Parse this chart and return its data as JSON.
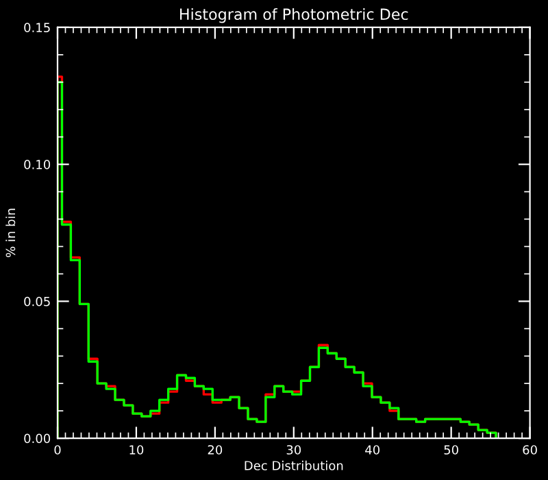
{
  "chart_data": {
    "type": "histogram",
    "title": "Histogram of Photometric Dec",
    "xlabel": "Dec Distribution",
    "ylabel": "% in bin",
    "bins": [
      0,
      0.5625,
      1.6875,
      2.8125,
      3.9375,
      5.0625,
      6.1875,
      7.3125,
      8.4375,
      9.5625,
      10.6875,
      11.8125,
      12.9375,
      14.0625,
      15.1875,
      16.3125,
      17.4375,
      18.5625,
      19.6875,
      20.8125,
      21.9375,
      23.0625,
      24.1875,
      25.3125,
      26.4375,
      27.5625,
      28.6875,
      29.8125,
      30.9375,
      32.0625,
      33.1875,
      34.3125,
      35.4375,
      36.5625,
      37.6875,
      38.8125,
      39.9375,
      41.0625,
      42.1875,
      43.3125,
      44.4375,
      45.5625,
      46.6875,
      47.8125,
      48.9375,
      50.0625,
      51.1875,
      52.3125,
      53.4375,
      54.5625,
      55.6875
    ],
    "series": [
      {
        "color": "#ff0000",
        "values": [
          0.132,
          0.079,
          0.066,
          0.049,
          0.029,
          0.02,
          0.019,
          0.014,
          0.012,
          0.009,
          0.008,
          0.009,
          0.013,
          0.017,
          0.023,
          0.021,
          0.019,
          0.016,
          0.013,
          0.014,
          0.015,
          0.011,
          0.007,
          0.006,
          0.016,
          0.019,
          0.017,
          0.017,
          0.021,
          0.026,
          0.034,
          0.031,
          0.029,
          0.026,
          0.024,
          0.02,
          0.015,
          0.013,
          0.01,
          0.007,
          0.007,
          0.006,
          0.007,
          0.007,
          0.007,
          0.007,
          0.006,
          0.005,
          0.003,
          0.002
        ]
      },
      {
        "color": "#00ff00",
        "values": [
          0.13,
          0.078,
          0.065,
          0.049,
          0.028,
          0.02,
          0.018,
          0.014,
          0.012,
          0.009,
          0.008,
          0.01,
          0.014,
          0.018,
          0.023,
          0.022,
          0.019,
          0.018,
          0.014,
          0.014,
          0.015,
          0.011,
          0.007,
          0.006,
          0.015,
          0.019,
          0.017,
          0.016,
          0.021,
          0.026,
          0.033,
          0.031,
          0.029,
          0.026,
          0.024,
          0.019,
          0.015,
          0.013,
          0.011,
          0.007,
          0.007,
          0.006,
          0.007,
          0.007,
          0.007,
          0.007,
          0.006,
          0.005,
          0.003,
          0.002
        ]
      }
    ],
    "xlim": [
      0,
      60
    ],
    "xticks": [
      0,
      10,
      20,
      30,
      40,
      50,
      60
    ],
    "ylim": [
      0,
      0.15
    ],
    "yticks": [
      {
        "value": 0,
        "label": "0.00"
      },
      {
        "value": 0.05,
        "label": "0.05"
      },
      {
        "value": 0.1,
        "label": "0.10"
      },
      {
        "value": 0.15,
        "label": "0.15"
      }
    ],
    "grid": false,
    "legend": false
  }
}
